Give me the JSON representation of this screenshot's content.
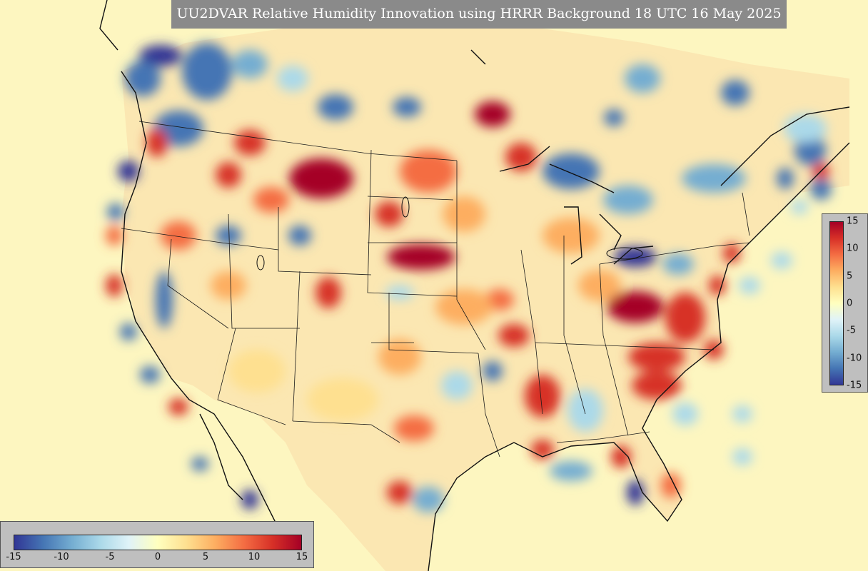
{
  "map": {
    "title": "UU2DVAR Relative Humidity Innovation using HRRR Background 18 UTC 16 May 2025",
    "colors": {
      "ocean": "#fdf6c0",
      "land_base": "#fbe7b2",
      "border": "#1a1a1a"
    }
  },
  "legend": {
    "colorscale": [
      "#313695",
      "#4575b4",
      "#74add1",
      "#abd9e9",
      "#e0f3f8",
      "#ffffbf",
      "#fee090",
      "#fdae61",
      "#f46d43",
      "#d73027",
      "#a50026"
    ],
    "range": [
      -15,
      15
    ],
    "right_ticks": [
      "15",
      "10",
      "5",
      "0",
      "-5",
      "-10",
      "-15"
    ],
    "bottom_ticks": [
      "-15",
      "-10",
      "-5",
      "0",
      "5",
      "10",
      "15"
    ],
    "tick_values": [
      -15,
      -10,
      -5,
      0,
      5,
      10,
      15
    ]
  }
}
